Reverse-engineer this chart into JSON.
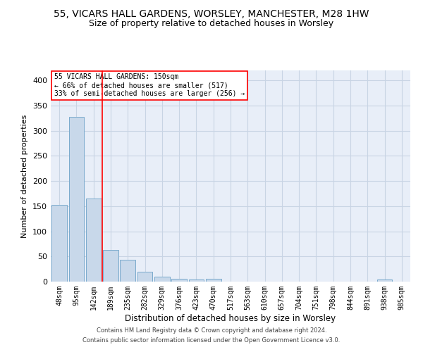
{
  "title_line1": "55, VICARS HALL GARDENS, WORSLEY, MANCHESTER, M28 1HW",
  "title_line2": "Size of property relative to detached houses in Worsley",
  "xlabel": "Distribution of detached houses by size in Worsley",
  "ylabel": "Number of detached properties",
  "footer_line1": "Contains HM Land Registry data © Crown copyright and database right 2024.",
  "footer_line2": "Contains public sector information licensed under the Open Government Licence v3.0.",
  "annotation_line1": "55 VICARS HALL GARDENS: 150sqm",
  "annotation_line2": "← 66% of detached houses are smaller (517)",
  "annotation_line3": "33% of semi-detached houses are larger (256) →",
  "bar_labels": [
    "48sqm",
    "95sqm",
    "142sqm",
    "189sqm",
    "235sqm",
    "282sqm",
    "329sqm",
    "376sqm",
    "423sqm",
    "470sqm",
    "517sqm",
    "563sqm",
    "610sqm",
    "657sqm",
    "704sqm",
    "751sqm",
    "798sqm",
    "844sqm",
    "891sqm",
    "938sqm",
    "985sqm"
  ],
  "bar_values": [
    152,
    328,
    165,
    63,
    44,
    20,
    10,
    5,
    4,
    5,
    0,
    0,
    0,
    0,
    0,
    0,
    0,
    0,
    0,
    4,
    0
  ],
  "bar_color": "#c8d8ea",
  "bar_edge_color": "#7aaacc",
  "redline_index": 2,
  "ylim": [
    0,
    420
  ],
  "yticks": [
    0,
    50,
    100,
    150,
    200,
    250,
    300,
    350,
    400
  ],
  "grid_color": "#c8d4e4",
  "bg_color": "#e8eef8",
  "title_fontsize": 10,
  "subtitle_fontsize": 9,
  "annotation_box_color": "white",
  "annotation_box_edge": "red"
}
